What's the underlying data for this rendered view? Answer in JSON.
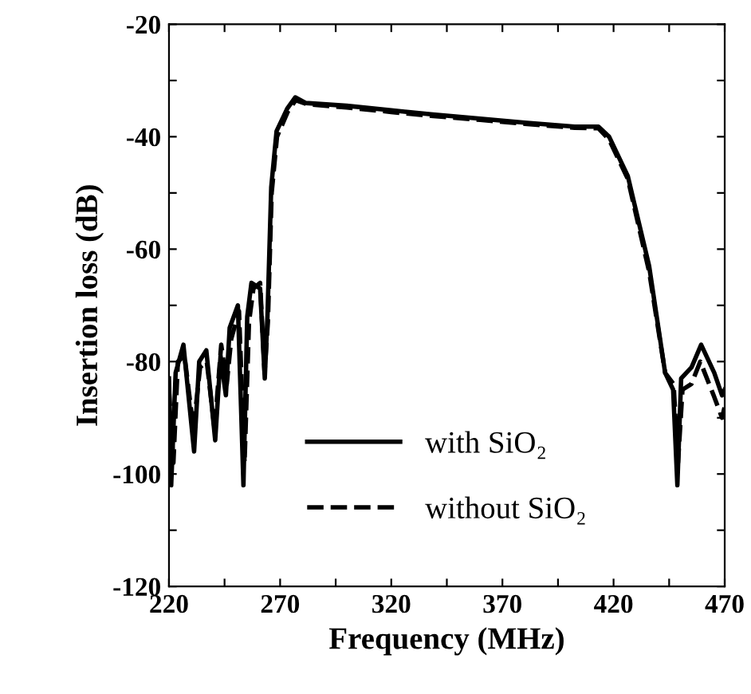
{
  "chart_data": {
    "type": "line",
    "xlabel": "Frequency (MHz)",
    "ylabel": "Insertion loss (dB)",
    "xlim": [
      220,
      470
    ],
    "ylim": [
      -120,
      -20
    ],
    "xticks": [
      220,
      {
        "value": 245,
        "label": null
      },
      270,
      {
        "value": 295,
        "label": null
      },
      320,
      {
        "value": 345,
        "label": null
      },
      370,
      {
        "value": 395,
        "label": null
      },
      420,
      {
        "value": 445,
        "label": null
      },
      470
    ],
    "yticks": [
      -120,
      {
        "value": -110,
        "label": null
      },
      -100,
      {
        "value": -90,
        "label": null
      },
      -80,
      {
        "value": -70,
        "label": null
      },
      -60,
      {
        "value": -50,
        "label": null
      },
      -40,
      {
        "value": -30,
        "label": null
      },
      -20
    ],
    "grid": false,
    "legend": "bottom",
    "marker": "none",
    "series": [
      {
        "name": "with SiO₂",
        "color": "#000000",
        "line_style": "solid",
        "x": [
          220,
          221,
          223,
          226.5,
          231.3,
          233.6,
          236.8,
          240.8,
          243.2,
          245.6,
          247.3,
          251,
          253.5,
          255.2,
          257.1,
          261,
          263.1,
          264.3,
          266,
          268.4,
          273.2,
          276.8,
          281.6,
          300,
          320,
          337.8,
          360,
          380,
          402.5,
          413.2,
          418,
          426.4,
          436,
          443.2,
          446.8,
          448.7,
          450.4,
          455.1,
          459.4,
          465.3,
          468.8,
          470
        ],
        "values": [
          -83,
          -102,
          -82,
          -77,
          -96,
          -80,
          -78,
          -94,
          -79,
          -86,
          -74,
          -70,
          -102,
          -72,
          -66,
          -67,
          -83,
          -72,
          -49,
          -39,
          -35,
          -33,
          -34,
          -34.5,
          -35.3,
          -36,
          -36.8,
          -37.5,
          -38.2,
          -38.2,
          -40,
          -47,
          -63,
          -82,
          -85,
          -102,
          -83,
          -81,
          -77,
          -82,
          -86,
          -85
        ]
      },
      {
        "name": "without SiO₂",
        "color": "#000000",
        "line_style": "dashed",
        "x": [
          220,
          222,
          224,
          227,
          231,
          234,
          237,
          240.5,
          243.5,
          246,
          248,
          251.5,
          254,
          256,
          258,
          261,
          263,
          264.5,
          266.2,
          268.6,
          273.5,
          277,
          282,
          300,
          320,
          337.8,
          360,
          380,
          402.5,
          413.2,
          418,
          426.4,
          436,
          443.2,
          447,
          449,
          451,
          455,
          459,
          465,
          468.8,
          470
        ],
        "values": [
          -85,
          -98,
          -80,
          -79,
          -92,
          -81,
          -80,
          -92,
          -77,
          -84,
          -76,
          -71,
          -98,
          -73,
          -67,
          -66,
          -82,
          -73,
          -50,
          -40,
          -35.5,
          -33.5,
          -34.2,
          -34.8,
          -35.6,
          -36.3,
          -37,
          -37.7,
          -38.4,
          -38.5,
          -40.5,
          -47.5,
          -64,
          -82,
          -84,
          -98,
          -85,
          -84,
          -80,
          -86,
          -90,
          -88
        ]
      }
    ]
  }
}
